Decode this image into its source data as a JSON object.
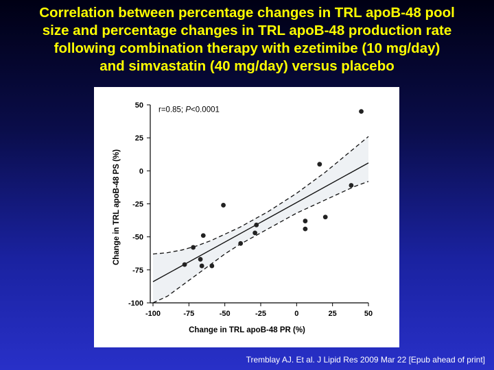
{
  "slide": {
    "title_lines": [
      "Correlation between percentage changes in TRL apoB-48 pool",
      "size and percentage changes in TRL apoB-48 production rate",
      "following combination therapy with ezetimibe (10 mg/day)",
      "and simvastatin (40 mg/day) versus placebo"
    ],
    "citation": "Tremblay AJ. Et al. J Lipid Res 2009 Mar 22 [Epub ahead of print]",
    "colors": {
      "background": "#1a22a0",
      "title": "#ffff00",
      "citation": "#ffffff"
    }
  },
  "chart_data": {
    "type": "scatter",
    "xlabel": "Change in TRL apoB-48 PR (%)",
    "ylabel": "Change in TRL apoB-48 PS (%)",
    "annotation": {
      "r_text": "r=0.85; ",
      "p_italic": "P",
      "p_value": "<0.0001"
    },
    "xlim": [
      -100,
      50
    ],
    "ylim": [
      -100,
      50
    ],
    "xticks": [
      -100,
      -75,
      -50,
      -25,
      0,
      25,
      50
    ],
    "yticks": [
      -100,
      -75,
      -50,
      -25,
      0,
      25,
      50
    ],
    "xtick_labels": [
      "-100",
      "-75",
      "-50",
      "-25",
      "0",
      "25",
      "50"
    ],
    "ytick_labels": [
      "-100",
      "-75",
      "-50",
      "-25",
      "0",
      "25",
      "50"
    ],
    "grid": false,
    "points": [
      [
        -78,
        -71
      ],
      [
        -72,
        -58
      ],
      [
        -67,
        -67
      ],
      [
        -66,
        -72
      ],
      [
        -65,
        -49
      ],
      [
        -59,
        -72
      ],
      [
        -51,
        -26
      ],
      [
        -39,
        -55
      ],
      [
        -29,
        -47
      ],
      [
        -28,
        -41
      ],
      [
        6,
        -38
      ],
      [
        6,
        -44
      ],
      [
        16,
        5
      ],
      [
        20,
        -35
      ],
      [
        38,
        -11
      ],
      [
        45,
        45
      ]
    ],
    "regression": {
      "x": [
        -100,
        50
      ],
      "y": [
        -84,
        6
      ]
    },
    "ci_upper": {
      "x": [
        -100,
        -90,
        -80,
        -70,
        -60,
        -50,
        -40,
        -30,
        -20,
        -10,
        0,
        10,
        20,
        30,
        40,
        50
      ],
      "y": [
        -63,
        -62,
        -60,
        -57,
        -53,
        -48,
        -43,
        -37,
        -31,
        -24,
        -17,
        -9,
        -1,
        8,
        17,
        26
      ]
    },
    "ci_lower": {
      "x": [
        -100,
        -90,
        -80,
        -70,
        -60,
        -50,
        -40,
        -30,
        -20,
        -10,
        0,
        10,
        20,
        30,
        40,
        50
      ],
      "y": [
        -100,
        -95,
        -87,
        -79,
        -71,
        -63,
        -56,
        -50,
        -44,
        -38,
        -32,
        -27,
        -22,
        -17,
        -12,
        -8
      ]
    },
    "band_color": "#eef1f4",
    "point_color": "#222222",
    "line_color": "#111111"
  }
}
